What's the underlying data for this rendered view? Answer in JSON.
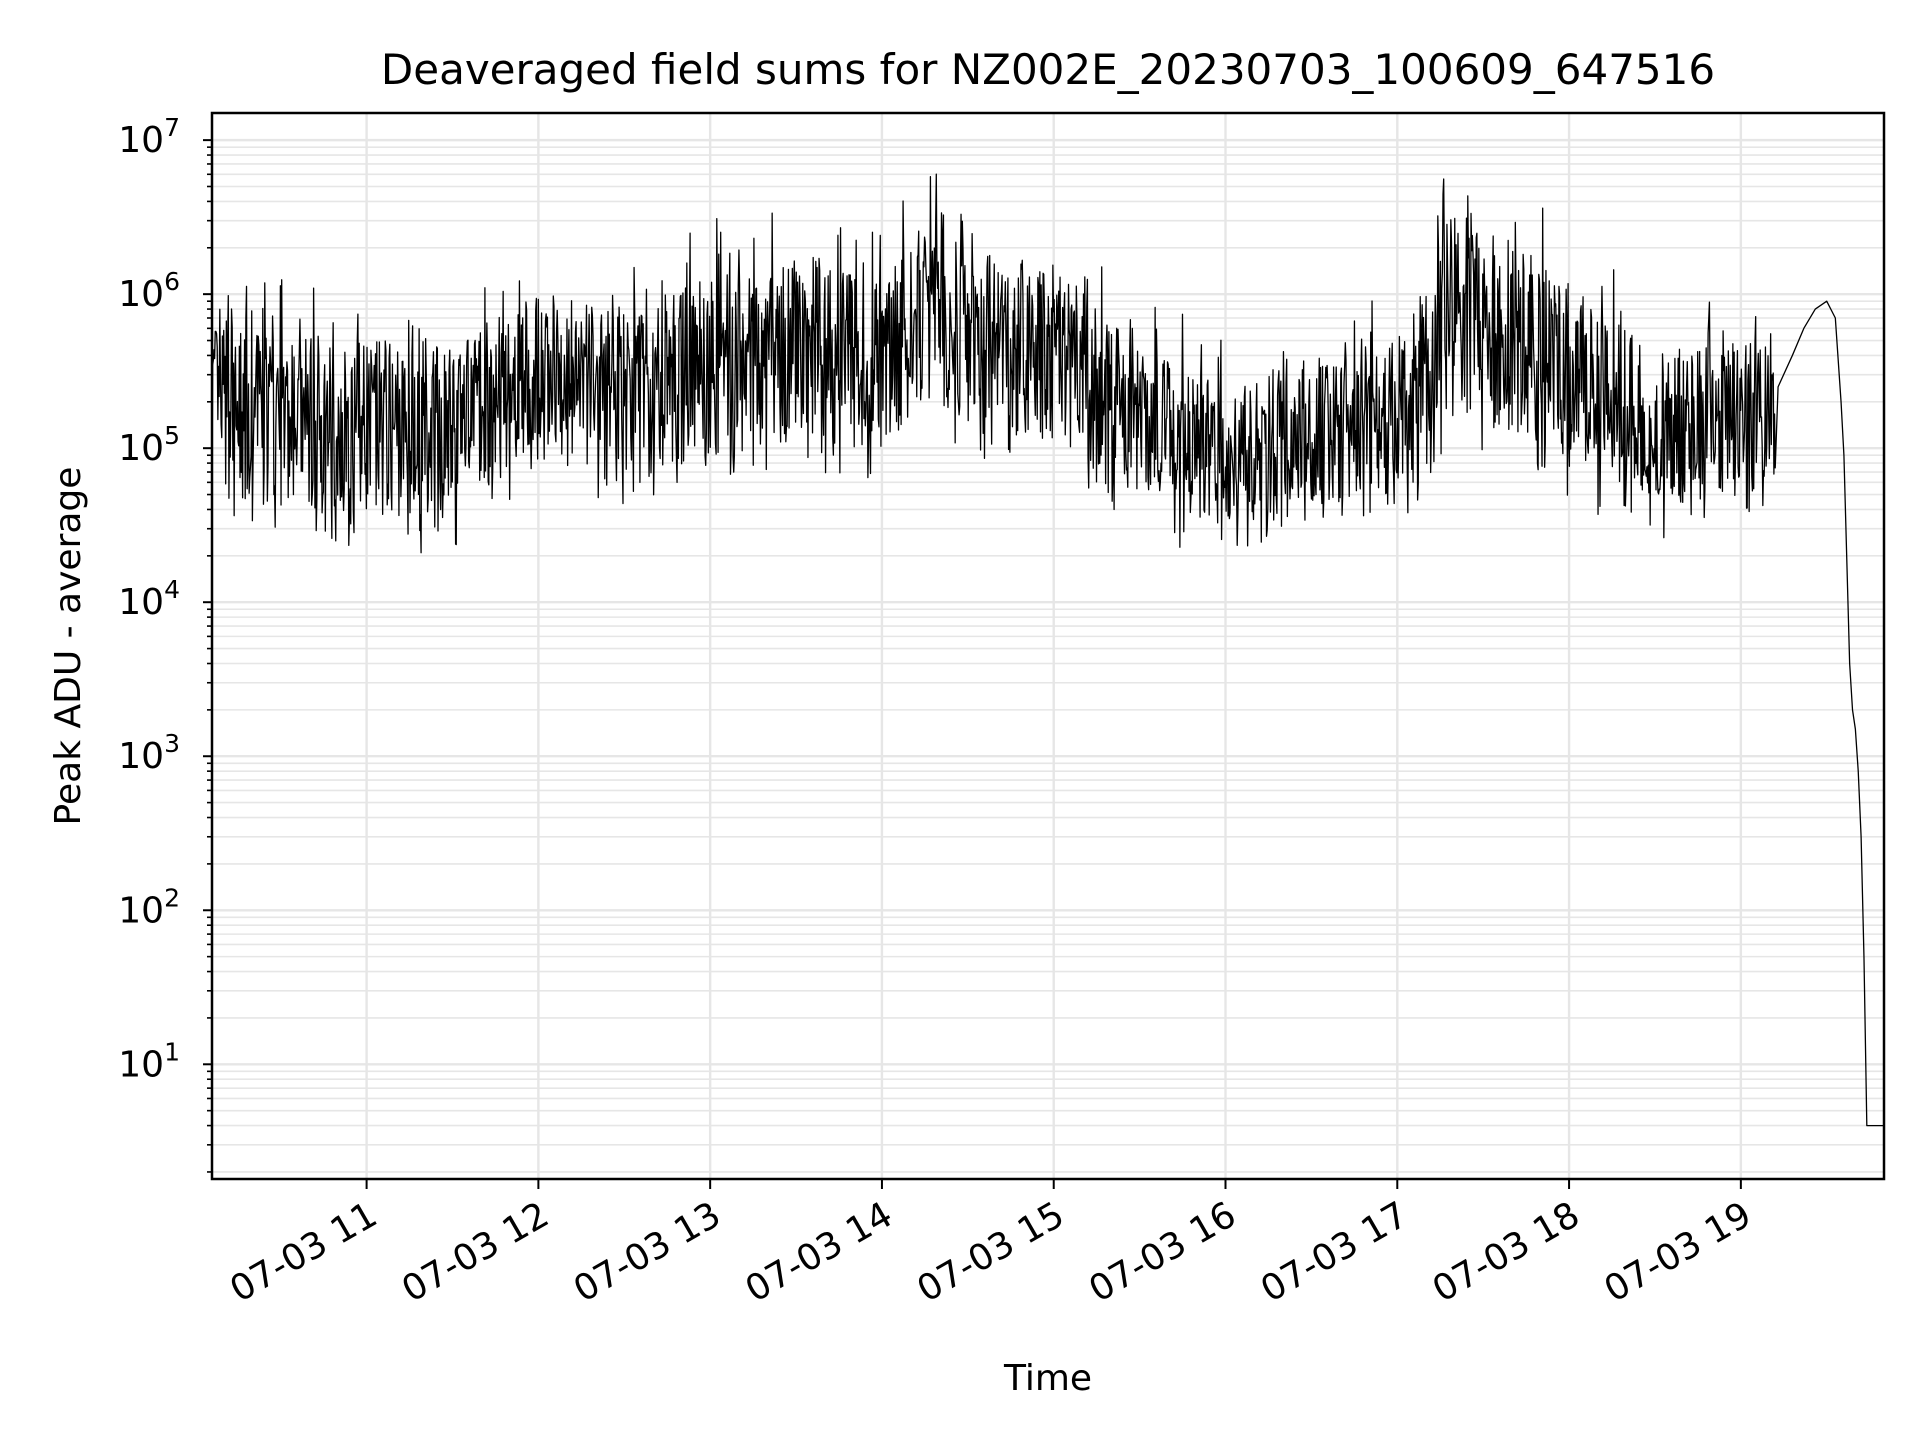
{
  "chart_data": {
    "type": "line",
    "title": "Deaveraged field sums for NZ002E_20230703_100609_647516",
    "xlabel": "Time",
    "ylabel": "Peak ADU - average",
    "y_scale": "log",
    "ylim": [
      1.8,
      15000000
    ],
    "xlim": [
      "07-03 10:06",
      "07-03 19:50"
    ],
    "grid": true,
    "legend": "none",
    "line_color": "#000000",
    "x_ticks": [
      {
        "time": "07-03 11:00",
        "label": "07-03 11"
      },
      {
        "time": "07-03 12:00",
        "label": "07-03 12"
      },
      {
        "time": "07-03 13:00",
        "label": "07-03 13"
      },
      {
        "time": "07-03 14:00",
        "label": "07-03 14"
      },
      {
        "time": "07-03 15:00",
        "label": "07-03 15"
      },
      {
        "time": "07-03 16:00",
        "label": "07-03 16"
      },
      {
        "time": "07-03 17:00",
        "label": "07-03 17"
      },
      {
        "time": "07-03 18:00",
        "label": "07-03 18"
      },
      {
        "time": "07-03 19:00",
        "label": "07-03 19"
      }
    ],
    "y_ticks": [
      {
        "value": 10,
        "base": "10",
        "exp": "1"
      },
      {
        "value": 100,
        "base": "10",
        "exp": "2"
      },
      {
        "value": 1000,
        "base": "10",
        "exp": "3"
      },
      {
        "value": 10000,
        "base": "10",
        "exp": "4"
      },
      {
        "value": 100000,
        "base": "10",
        "exp": "5"
      },
      {
        "value": 1000000,
        "base": "10",
        "exp": "6"
      },
      {
        "value": 10000000,
        "base": "10",
        "exp": "7"
      }
    ],
    "series": [
      {
        "noise": "log-uniform fluctuation between low and high envelopes",
        "envelope": [
          {
            "time": "07-03 10:06",
            "low": 40000,
            "high": 900000
          },
          {
            "time": "07-03 10:30",
            "low": 30000,
            "high": 700000
          },
          {
            "time": "07-03 11:00",
            "low": 28000,
            "high": 650000
          },
          {
            "time": "07-03 11:30",
            "low": 30000,
            "high": 600000
          },
          {
            "time": "07-03 12:00",
            "low": 80000,
            "high": 1300000
          },
          {
            "time": "07-03 12:30",
            "low": 60000,
            "high": 900000
          },
          {
            "time": "07-03 13:00",
            "low": 60000,
            "high": 1800000
          },
          {
            "time": "07-03 13:30",
            "low": 100000,
            "high": 2000000
          },
          {
            "time": "07-03 14:00",
            "low": 80000,
            "high": 1500000
          },
          {
            "time": "07-03 14:15",
            "low": 150000,
            "high": 4000000
          },
          {
            "time": "07-03 14:30",
            "low": 120000,
            "high": 2500000
          },
          {
            "time": "07-03 15:00",
            "low": 80000,
            "high": 2000000
          },
          {
            "time": "07-03 15:30",
            "low": 40000,
            "high": 600000
          },
          {
            "time": "07-03 16:00",
            "low": 25000,
            "high": 300000
          },
          {
            "time": "07-03 16:30",
            "low": 35000,
            "high": 500000
          },
          {
            "time": "07-03 17:00",
            "low": 40000,
            "high": 600000
          },
          {
            "time": "07-03 17:20",
            "low": 150000,
            "high": 5000000
          },
          {
            "time": "07-03 17:40",
            "low": 100000,
            "high": 3000000
          },
          {
            "time": "07-03 18:00",
            "low": 60000,
            "high": 1500000
          },
          {
            "time": "07-03 18:30",
            "low": 35000,
            "high": 500000
          },
          {
            "time": "07-03 19:00",
            "low": 40000,
            "high": 600000
          },
          {
            "time": "07-03 19:12",
            "low": 45000,
            "high": 700000
          }
        ],
        "points": [
          {
            "time": "07-03 19:13",
            "value": 250000
          },
          {
            "time": "07-03 19:18",
            "value": 400000
          },
          {
            "time": "07-03 19:22",
            "value": 600000
          },
          {
            "time": "07-03 19:26",
            "value": 800000
          },
          {
            "time": "07-03 19:30",
            "value": 900000
          },
          {
            "time": "07-03 19:33",
            "value": 700000
          },
          {
            "time": "07-03 19:35",
            "value": 200000
          },
          {
            "time": "07-03 19:36",
            "value": 90000
          },
          {
            "time": "07-03 19:38",
            "value": 4000
          },
          {
            "time": "07-03 19:39",
            "value": 2000
          },
          {
            "time": "07-03 19:40",
            "value": 1500
          },
          {
            "time": "07-03 19:41",
            "value": 800
          },
          {
            "time": "07-03 19:42",
            "value": 300
          },
          {
            "time": "07-03 19:43",
            "value": 50
          },
          {
            "time": "07-03 19:44",
            "value": 4
          },
          {
            "time": "07-03 19:50",
            "value": 4
          }
        ]
      }
    ]
  }
}
